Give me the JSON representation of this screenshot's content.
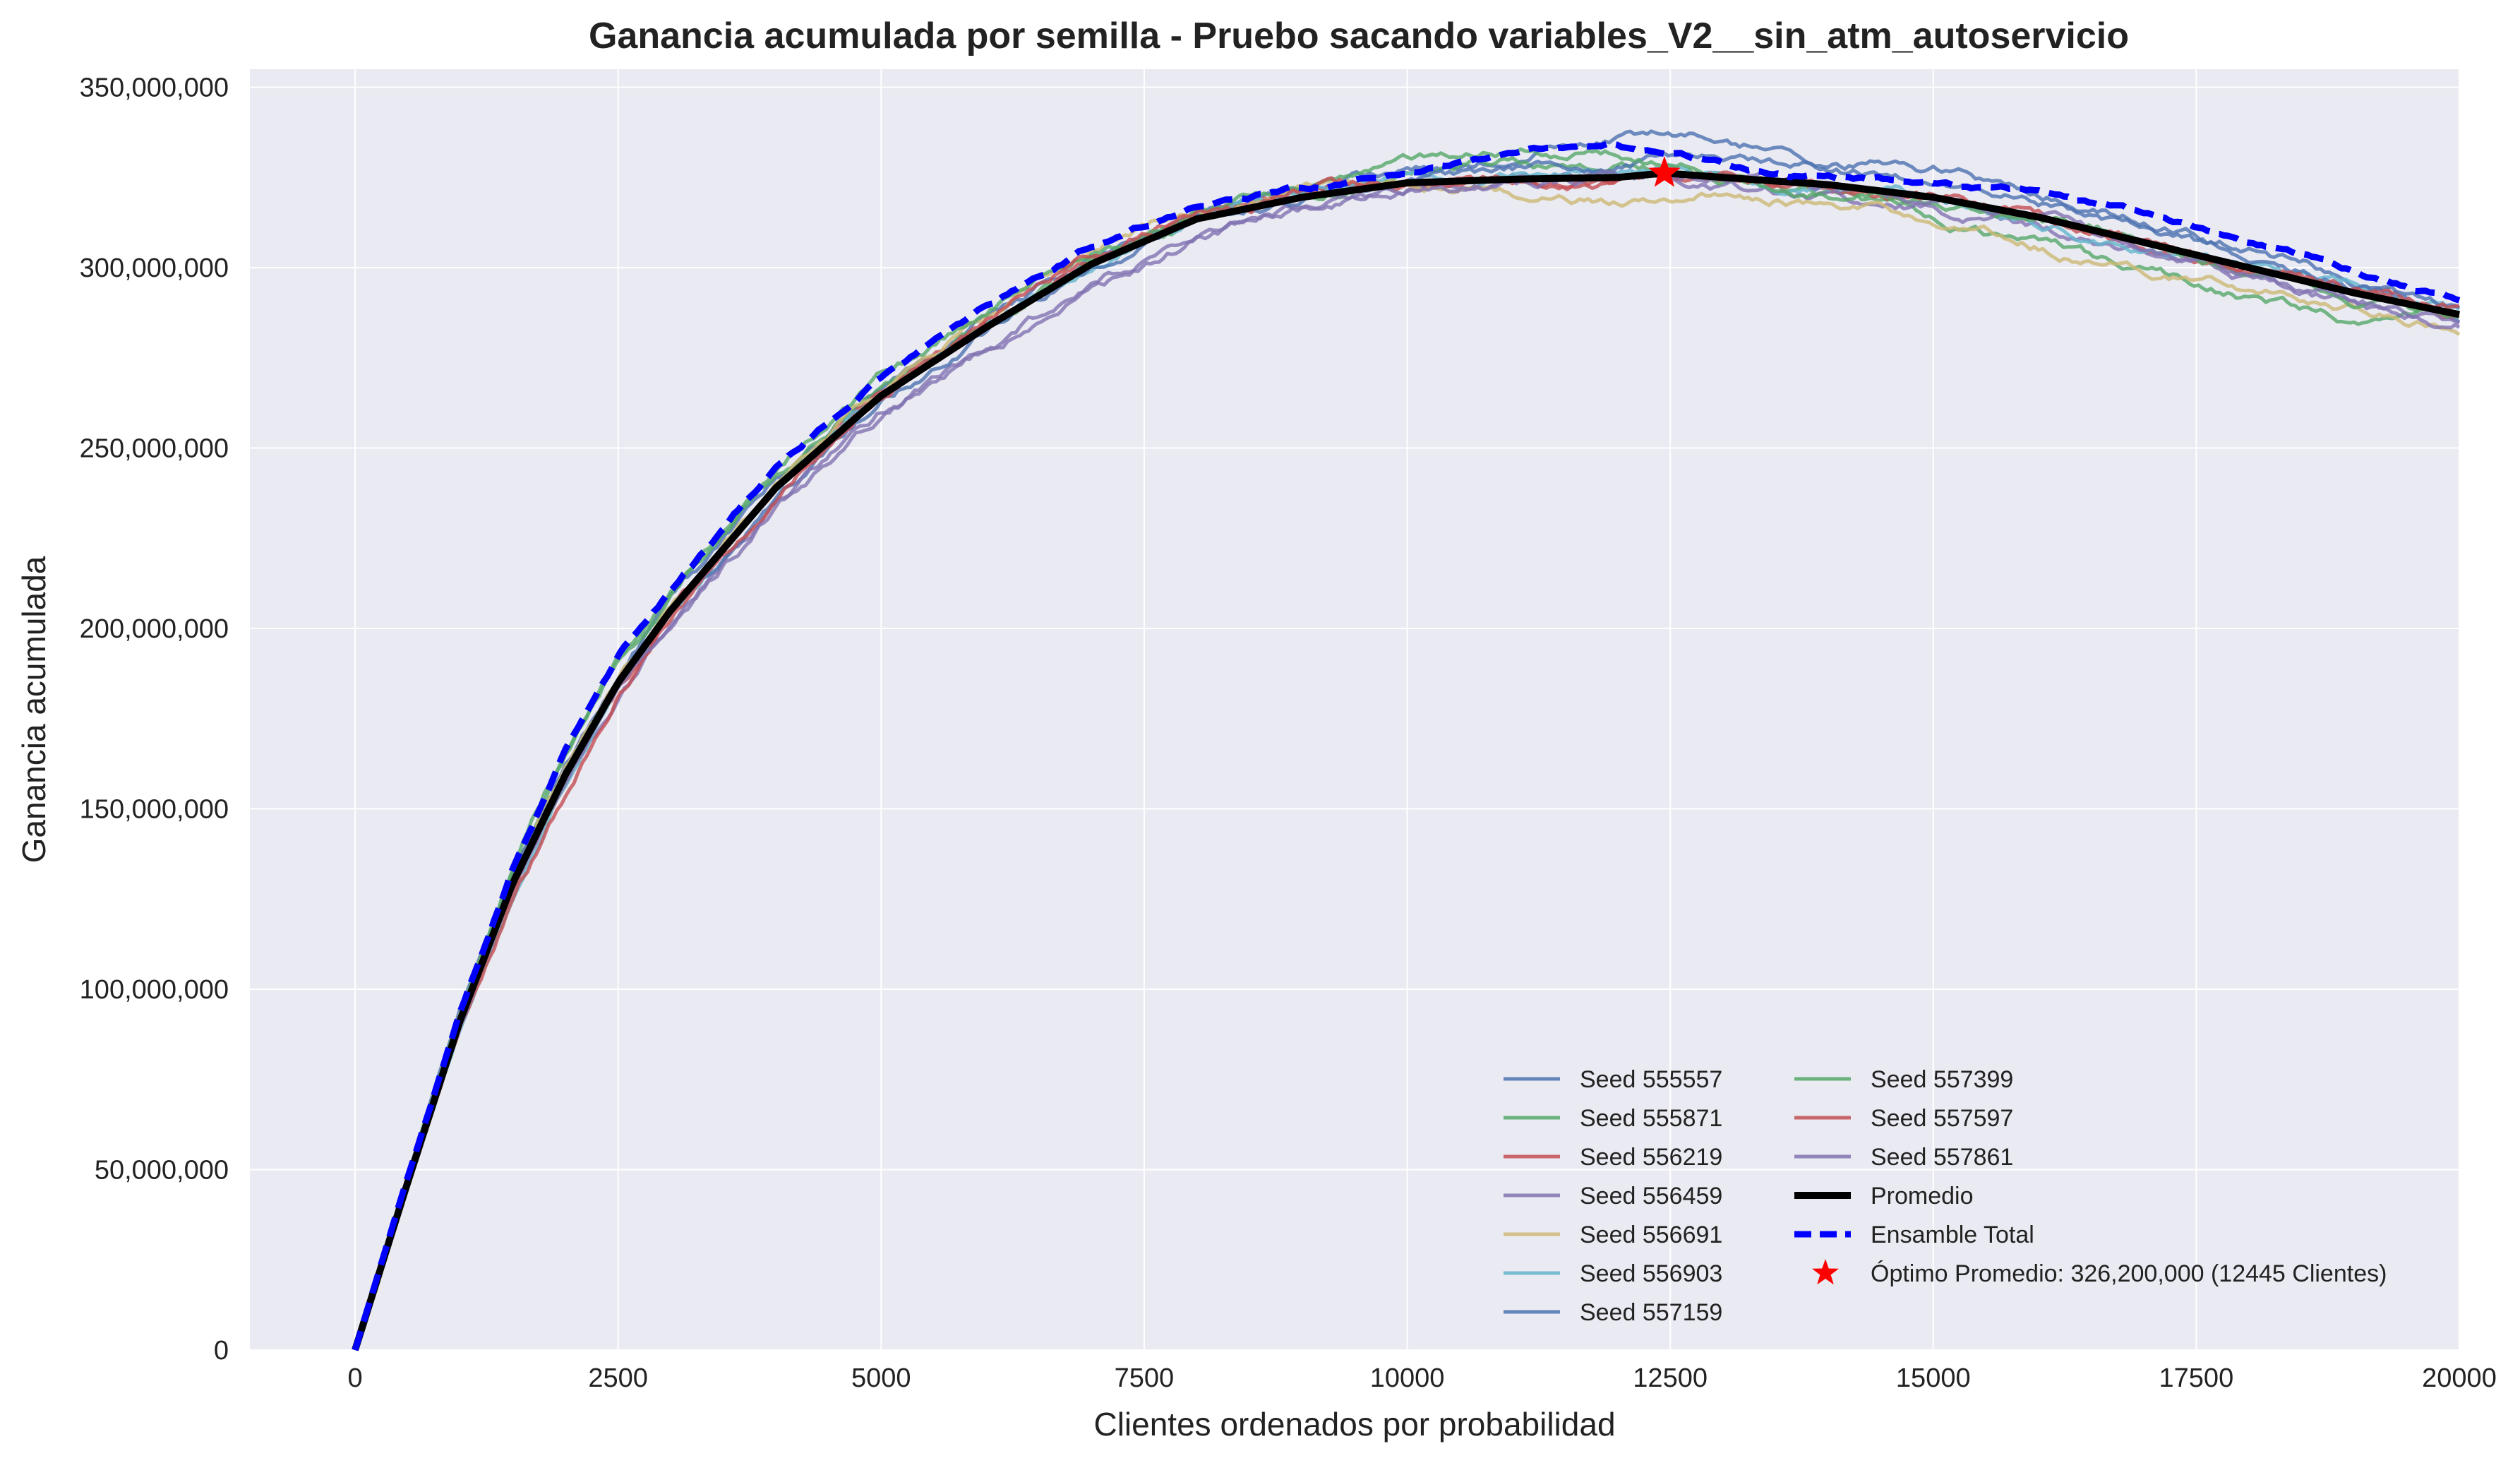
{
  "chart_data": {
    "type": "line",
    "title": "Ganancia acumulada por semilla - Pruebo sacando variables_V2__sin_atm_autoservicio",
    "xlabel": "Clientes ordenados por probabilidad",
    "ylabel": "Ganancia acumulada",
    "xlim": [
      -1000,
      20000
    ],
    "ylim": [
      0,
      355000000
    ],
    "x_ticks": [
      0,
      2500,
      5000,
      7500,
      10000,
      12500,
      15000,
      17500,
      20000
    ],
    "x_tick_labels": [
      "0",
      "2500",
      "5000",
      "7500",
      "10000",
      "12500",
      "15000",
      "17500",
      "20000"
    ],
    "y_ticks": [
      0,
      50000000,
      100000000,
      150000000,
      200000000,
      250000000,
      300000000,
      350000000
    ],
    "y_tick_labels": [
      "0",
      "50,000,000",
      "100,000,000",
      "150,000,000",
      "200,000,000",
      "250,000,000",
      "300,000,000",
      "350,000,000"
    ],
    "grid": true,
    "legend_position": "lower-right",
    "x": [
      0,
      500,
      1000,
      1500,
      2000,
      2500,
      3000,
      4000,
      5000,
      6000,
      7000,
      8000,
      9000,
      10000,
      11000,
      12000,
      12445,
      13000,
      14000,
      15000,
      16000,
      17000,
      18000,
      19000,
      20000
    ],
    "series": [
      {
        "name": "Seed 555557",
        "color": "#4c72b0",
        "values": [
          0,
          48000000,
          94000000,
          132000000,
          162000000,
          187000000,
          207000000,
          240000000,
          266000000,
          287000000,
          304000000,
          315000000,
          322000000,
          327000000,
          331000000,
          336000000,
          338000000,
          335000000,
          330000000,
          327000000,
          321000000,
          314000000,
          306000000,
          297000000,
          286000000
        ]
      },
      {
        "name": "Seed 555871",
        "color": "#55a868",
        "values": [
          0,
          47000000,
          93000000,
          133000000,
          165000000,
          190000000,
          208000000,
          243000000,
          268000000,
          286000000,
          301000000,
          314000000,
          321000000,
          326000000,
          329000000,
          328000000,
          327000000,
          325000000,
          320000000,
          314000000,
          306000000,
          298000000,
          292000000,
          285000000,
          288000000
        ]
      },
      {
        "name": "Seed 556219",
        "color": "#c44e52",
        "values": [
          0,
          46000000,
          91000000,
          128000000,
          158000000,
          184000000,
          205000000,
          240000000,
          265000000,
          285000000,
          302000000,
          314000000,
          321000000,
          322000000,
          323000000,
          325000000,
          326000000,
          324000000,
          322000000,
          319000000,
          313000000,
          306000000,
          299000000,
          292000000,
          287000000
        ]
      },
      {
        "name": "Seed 556459",
        "color": "#8172b2",
        "values": [
          0,
          45000000,
          90000000,
          127000000,
          157000000,
          182000000,
          202000000,
          234000000,
          260000000,
          278000000,
          296000000,
          307000000,
          316000000,
          322000000,
          324000000,
          325000000,
          325000000,
          323000000,
          320000000,
          316000000,
          311000000,
          304000000,
          297000000,
          290000000,
          284000000
        ]
      },
      {
        "name": "Seed 556691",
        "color": "#ccb974",
        "values": [
          0,
          47000000,
          92000000,
          131000000,
          161000000,
          187000000,
          208000000,
          242000000,
          267000000,
          287000000,
          305000000,
          316000000,
          322000000,
          324000000,
          321000000,
          318000000,
          320000000,
          322000000,
          318000000,
          313000000,
          306000000,
          300000000,
          294000000,
          288000000,
          282000000
        ]
      },
      {
        "name": "Seed 556903",
        "color": "#64b5cd",
        "values": [
          0,
          46000000,
          90000000,
          126000000,
          158000000,
          184000000,
          204000000,
          238000000,
          264000000,
          284000000,
          302000000,
          314000000,
          320000000,
          324000000,
          325000000,
          326000000,
          327000000,
          325000000,
          322000000,
          318000000,
          312000000,
          306000000,
          300000000,
          294000000,
          288000000
        ]
      },
      {
        "name": "Seed 557159",
        "color": "#4c72b0",
        "values": [
          0,
          47000000,
          92000000,
          131000000,
          160000000,
          185000000,
          205000000,
          236000000,
          262000000,
          283000000,
          300000000,
          312000000,
          319000000,
          324000000,
          327000000,
          328000000,
          330000000,
          329000000,
          327000000,
          324000000,
          318000000,
          310000000,
          303000000,
          295000000,
          289000000
        ]
      },
      {
        "name": "Seed 557399",
        "color": "#55a868",
        "values": [
          0,
          48000000,
          94000000,
          134000000,
          166000000,
          191000000,
          210000000,
          244000000,
          269000000,
          288000000,
          305000000,
          316000000,
          322000000,
          328000000,
          333000000,
          331000000,
          329000000,
          326000000,
          322000000,
          318000000,
          313000000,
          307000000,
          300000000,
          292000000,
          285000000
        ]
      },
      {
        "name": "Seed 557597",
        "color": "#c44e52",
        "values": [
          0,
          45000000,
          89000000,
          125000000,
          154000000,
          182000000,
          203000000,
          238000000,
          265000000,
          286000000,
          303000000,
          315000000,
          321000000,
          323000000,
          323000000,
          322000000,
          324000000,
          325000000,
          323000000,
          320000000,
          314000000,
          307000000,
          300000000,
          294000000,
          288000000
        ]
      },
      {
        "name": "Seed 557861",
        "color": "#8172b2",
        "values": [
          0,
          45000000,
          90000000,
          128000000,
          156000000,
          181000000,
          201000000,
          233000000,
          259000000,
          277000000,
          294000000,
          308000000,
          317000000,
          322000000,
          324000000,
          325000000,
          326000000,
          325000000,
          323000000,
          319000000,
          313000000,
          306000000,
          298000000,
          291000000,
          285000000
        ]
      },
      {
        "name": "Promedio",
        "color": "#000000",
        "values": [
          0,
          46500000,
          91500000,
          129500000,
          159500000,
          185000000,
          205000000,
          239000000,
          264500000,
          283500000,
          301000000,
          313500000,
          319500000,
          323500000,
          324500000,
          325000000,
          326200000,
          325000000,
          323000000,
          319500000,
          314000000,
          307000000,
          300000000,
          293000000,
          287000000
        ]
      },
      {
        "name": "Ensamble Total",
        "color": "#0000ff",
        "values": [
          0,
          48000000,
          94000000,
          134000000,
          166000000,
          192000000,
          211000000,
          245000000,
          270000000,
          289000000,
          306000000,
          317000000,
          322000000,
          327000000,
          332000000,
          334000000,
          331000000,
          329000000,
          325000000,
          323000000,
          321000000,
          315000000,
          307000000,
          299000000,
          291000000
        ]
      }
    ],
    "optimum": {
      "name": "Óptimo Promedio: 326,200,000 (12445 Clientes)",
      "x": 12445,
      "y": 326200000,
      "color": "#ff0000"
    },
    "legend_columns": [
      [
        "Seed 555557",
        "Seed 555871",
        "Seed 556219",
        "Seed 556459",
        "Seed 556691",
        "Seed 556903",
        "Seed 557159"
      ],
      [
        "Seed 557399",
        "Seed 557597",
        "Seed 557861",
        "Promedio",
        "Ensamble Total",
        "Óptimo Promedio: 326,200,000 (12445 Clientes)"
      ]
    ],
    "colors": {
      "plot_background": "#eaeaf2",
      "grid": "#ffffff"
    }
  }
}
